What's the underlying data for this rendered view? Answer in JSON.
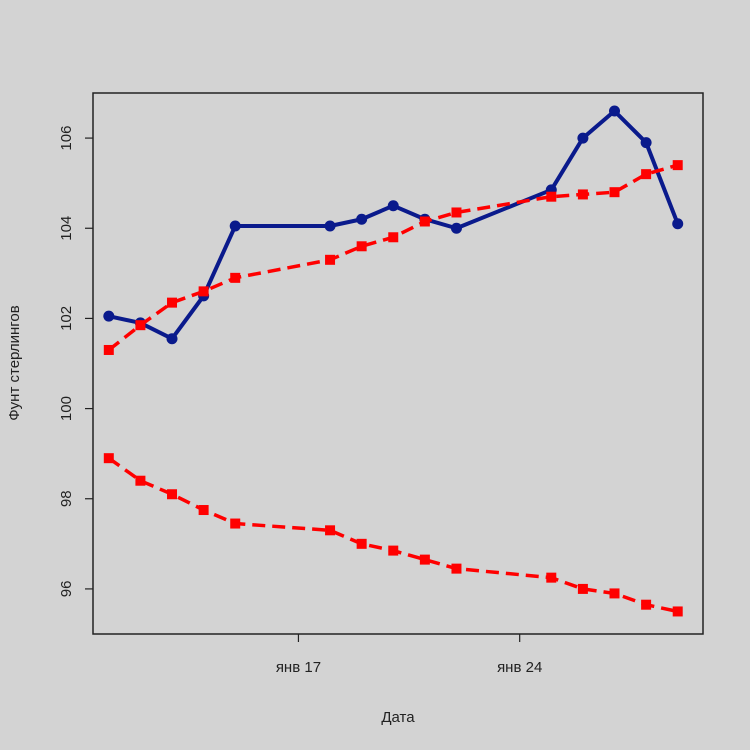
{
  "chart_data": {
    "type": "line",
    "xlabel": "Дата",
    "ylabel": "Фунт стерлингов",
    "x": [
      1,
      2,
      3,
      4,
      5,
      8,
      9,
      10,
      11,
      12,
      15,
      16,
      17,
      18,
      19
    ],
    "xlim": [
      0.5,
      19.8
    ],
    "ylim": [
      95,
      107
    ],
    "x_ticks": [
      {
        "value": 7,
        "label": "янв 17"
      },
      {
        "value": 14,
        "label": "янв 24"
      }
    ],
    "y_ticks": [
      96,
      98,
      100,
      102,
      104,
      106
    ],
    "grid": false,
    "series": [
      {
        "color": "#0a1a8c",
        "style": "solid",
        "marker": "circle",
        "values": [
          102.05,
          101.9,
          101.55,
          102.5,
          104.05,
          104.05,
          104.2,
          104.5,
          104.2,
          104.0,
          104.85,
          106.0,
          106.6,
          105.9,
          104.1
        ]
      },
      {
        "color": "#ff0000",
        "style": "dashed",
        "marker": "square",
        "values": [
          101.3,
          101.85,
          102.35,
          102.6,
          102.9,
          103.3,
          103.6,
          103.8,
          104.15,
          104.35,
          104.7,
          104.75,
          104.8,
          105.2,
          105.4
        ]
      },
      {
        "color": "#ff0000",
        "style": "dashed",
        "marker": "square",
        "values": [
          98.9,
          98.4,
          98.1,
          97.75,
          97.45,
          97.3,
          97.0,
          96.85,
          96.65,
          96.45,
          96.25,
          96.0,
          95.9,
          95.65,
          95.5
        ]
      }
    ]
  }
}
